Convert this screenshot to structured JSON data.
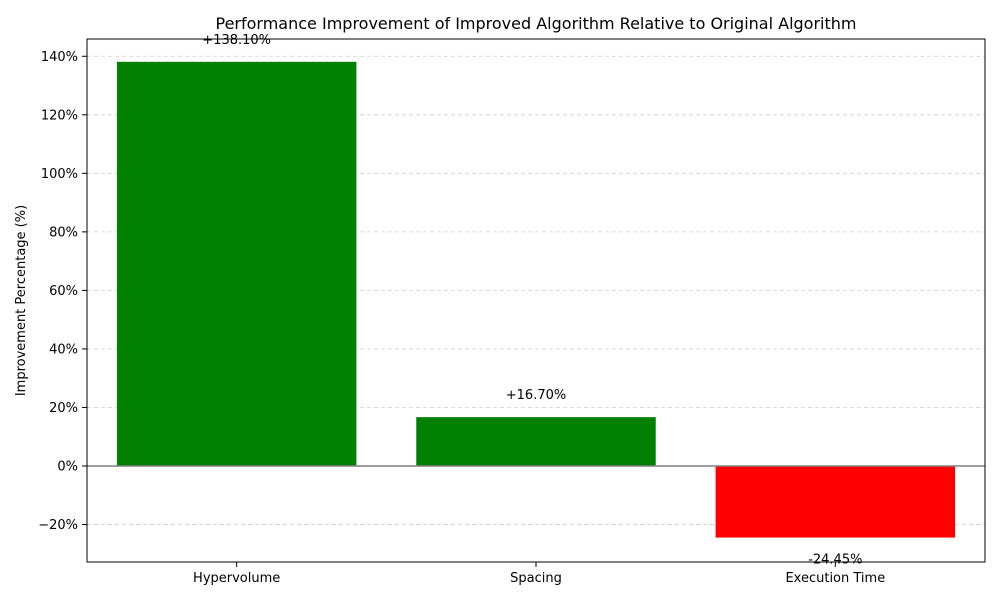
{
  "chart_data": {
    "type": "bar",
    "title": "Performance Improvement of Improved Algorithm Relative to Original Algorithm",
    "xlabel": "",
    "ylabel": "Improvement Percentage (%)",
    "categories": [
      "Hypervolume",
      "Spacing",
      "Execution Time"
    ],
    "values": [
      138.1,
      16.7,
      -24.45
    ],
    "data_labels": [
      "+138.10%",
      "+16.70%",
      "-24.45%"
    ],
    "bar_colors": [
      "#008000",
      "#008000",
      "#ff0000"
    ],
    "ylim": [
      -32.8,
      145.9
    ],
    "yticks": [
      -20,
      0,
      20,
      40,
      60,
      80,
      100,
      120,
      140
    ],
    "ytick_labels": [
      "−20%",
      "0%",
      "20%",
      "40%",
      "60%",
      "80%",
      "100%",
      "120%",
      "140%"
    ],
    "grid": "y-dashed",
    "zero_line": true
  }
}
